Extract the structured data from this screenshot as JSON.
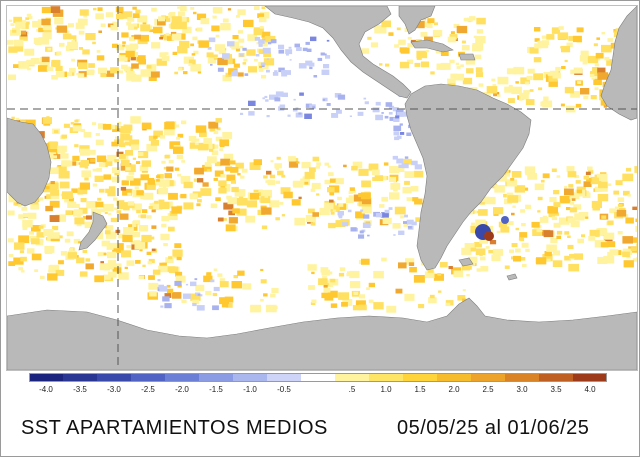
{
  "map": {
    "land_color": "#b9b9b9",
    "ocean_color": "#ffffff",
    "warm_colors": [
      "#fff3a0",
      "#ffe060",
      "#ffc830",
      "#f0a830",
      "#d88030"
    ],
    "cool_colors": [
      "#c8d0f8",
      "#a8b2ee",
      "#7a86e0"
    ],
    "gridline_color": "#555555"
  },
  "colorbar": {
    "labels": [
      "-4.0",
      "-3.5",
      "-3.0",
      "-2.5",
      "-2.0",
      "-1.5",
      "-1.0",
      "-0.5",
      "",
      ".5",
      "1.0",
      "1.5",
      "2.0",
      "2.5",
      "3.0",
      "3.5",
      "4.0"
    ],
    "colors": [
      "#1a237e",
      "#283593",
      "#3949ab",
      "#5063c4",
      "#6b7fd6",
      "#8c9ce4",
      "#aab6ee",
      "#cdd4f7",
      "#ffffff",
      "#fff3a0",
      "#ffe566",
      "#ffd43b",
      "#f7bc2e",
      "#eda22a",
      "#d98226",
      "#c05f22",
      "#9c3a1a"
    ]
  },
  "caption": {
    "title": "SST APARTAMIENTOS MEDIOS",
    "dates": "05/05/25 al 01/06/25"
  }
}
